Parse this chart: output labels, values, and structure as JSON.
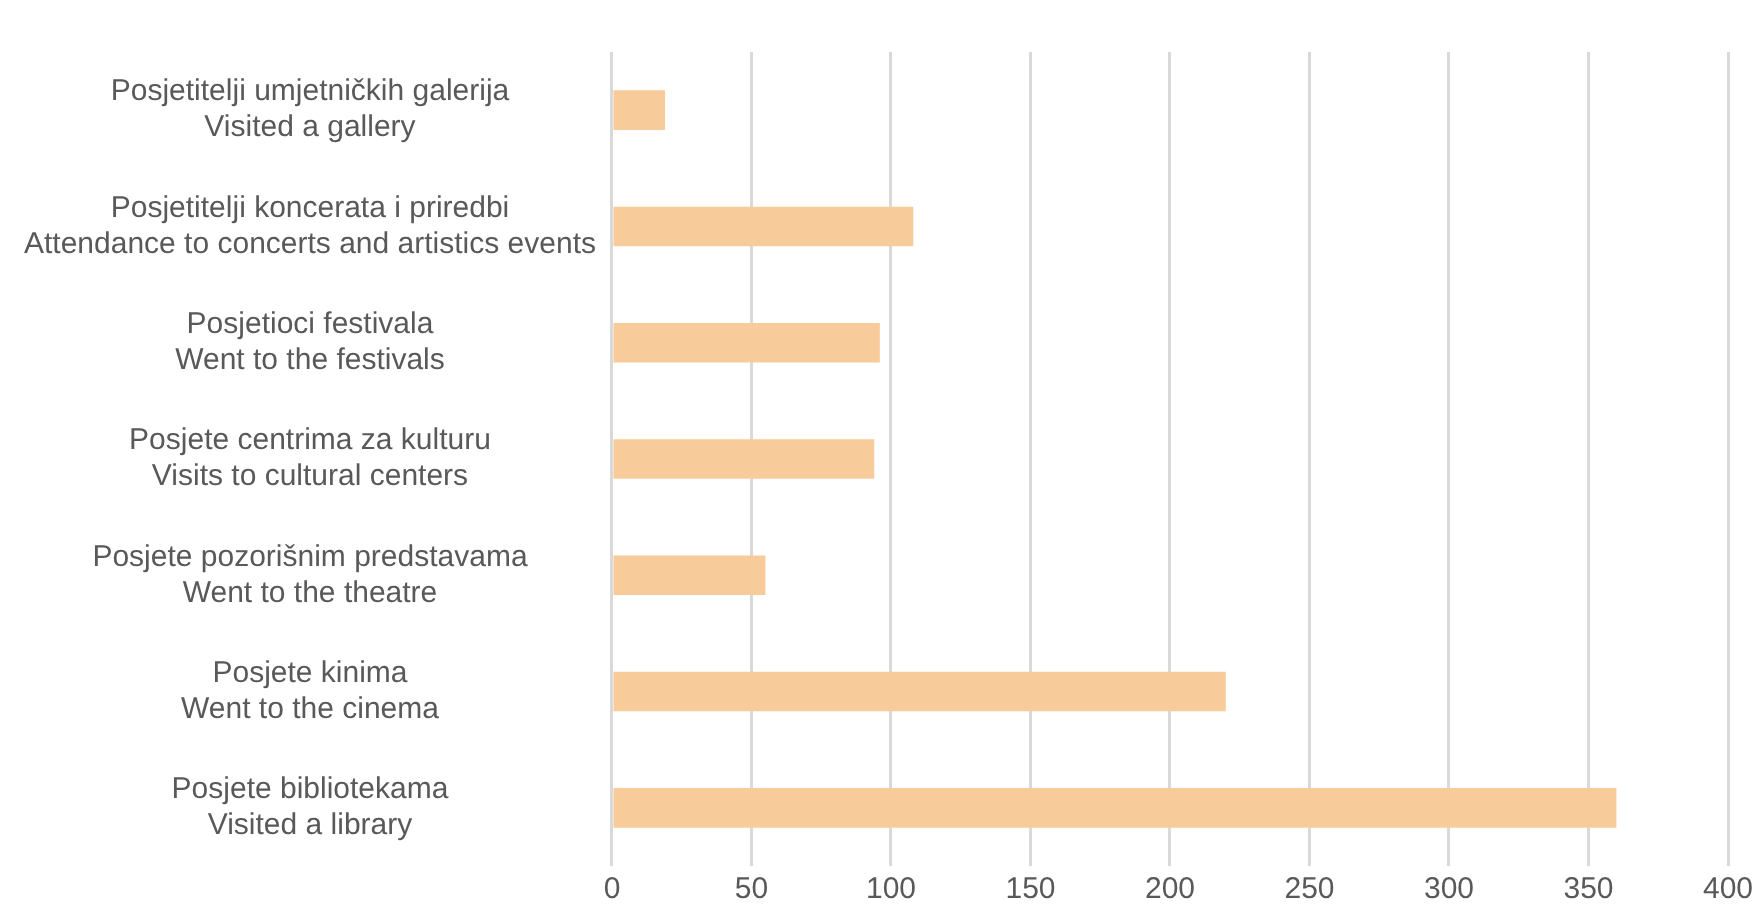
{
  "chart_data": {
    "type": "bar",
    "orientation": "horizontal",
    "categories": [
      "Posjetitelji umjetničkih galerija\nVisited a gallery",
      "Posjetitelji koncerata i priredbi\nAttendance to concerts and artistics events",
      "Posjetioci festivala\nWent to the festivals",
      "Posjete centrima za kulturu\nVisits to cultural centers",
      "Posjete pozorišnim predstavama\nWent to the theatre",
      "Posjete kinima\nWent to the cinema",
      "Posjete bibliotekama\nVisited a library"
    ],
    "values": [
      19,
      108,
      96,
      94,
      55,
      220,
      360
    ],
    "color": "#f8cb9a",
    "xlim": [
      0,
      400
    ],
    "xticks": [
      0,
      50,
      100,
      150,
      200,
      250,
      300,
      350,
      400
    ],
    "grid": "x",
    "legend": false
  }
}
